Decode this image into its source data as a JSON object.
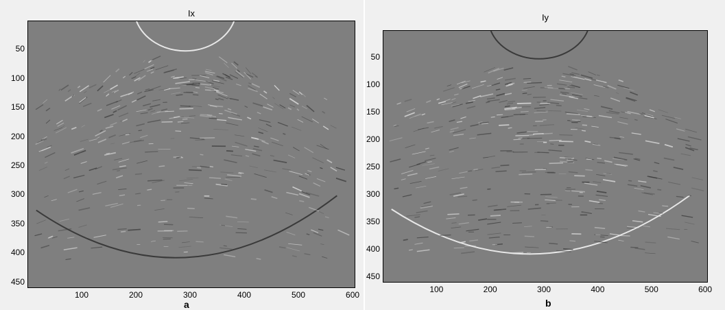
{
  "panels": [
    {
      "title": "Ix",
      "label": "a",
      "y_ticks": [
        "50",
        "100",
        "150",
        "200",
        "250",
        "300",
        "350",
        "400",
        "450"
      ],
      "x_ticks": [
        "100",
        "200",
        "300",
        "400",
        "500",
        "600"
      ]
    },
    {
      "title": "Iy",
      "label": "b",
      "y_ticks": [
        "50",
        "100",
        "150",
        "200",
        "250",
        "300",
        "350",
        "400",
        "450"
      ],
      "x_ticks": [
        "100",
        "200",
        "300",
        "400",
        "500",
        "600"
      ]
    }
  ],
  "colors": {
    "image_background": "#7f7f7f",
    "figure_background": "#f0f0f0",
    "highlight": "#e8e8e8",
    "shadow": "#3a3a3a"
  }
}
